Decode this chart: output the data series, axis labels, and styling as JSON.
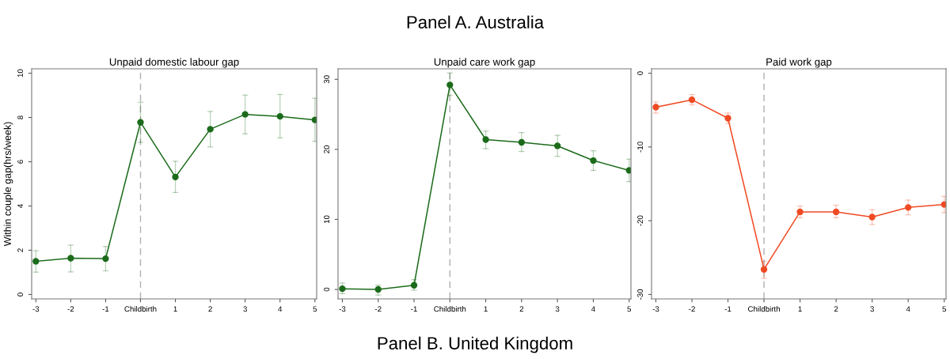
{
  "chart_data": [
    {
      "type": "line",
      "title": "Unpaid domestic labour gap",
      "ylabel": "Within couple gap(hrs/week)",
      "annotations": [
        "Panel A. Australia",
        "Panel B. United Kingdom"
      ],
      "categories": [
        "-3",
        "-2",
        "-1",
        "Childbirth",
        "1",
        "2",
        "3",
        "4",
        "5"
      ],
      "series": [
        {
          "color": "#1b6b1b",
          "values": [
            1.5,
            1.64,
            1.62,
            7.78,
            5.31,
            7.47,
            8.14,
            8.05,
            7.89
          ],
          "errors": [
            [
              1.01,
              1.98
            ],
            [
              1.02,
              2.23
            ],
            [
              1.07,
              2.17
            ],
            [
              6.88,
              8.69
            ],
            [
              4.61,
              6.02
            ],
            [
              6.67,
              8.27
            ],
            [
              7.26,
              9.01
            ],
            [
              7.08,
              9.04
            ],
            [
              6.92,
              8.87
            ]
          ]
        }
      ],
      "ylim": [
        -0.2,
        10.2
      ],
      "yticks": [
        0,
        2,
        4,
        6,
        8,
        10
      ],
      "marker": "circle",
      "line_style": "solid",
      "ref_lines": [
        {
          "axis": "x",
          "value": "Childbirth",
          "color": "#b0b0b0",
          "line_style": "dashed"
        }
      ]
    },
    {
      "type": "line",
      "title": "Unpaid care work gap",
      "categories": [
        "-3",
        "-2",
        "-1",
        "Childbirth",
        "1",
        "2",
        "3",
        "4",
        "5"
      ],
      "series": [
        {
          "color": "#1b6b1b",
          "values": [
            0.1,
            0,
            0.6,
            29.2,
            21.4,
            21,
            20.5,
            18.4,
            17
          ],
          "errors": [
            [
              -0.6,
              0.9
            ],
            [
              -0.8,
              0.6
            ],
            [
              -0.1,
              1.4
            ],
            [
              27.7,
              30.9
            ],
            [
              20.1,
              22.6
            ],
            [
              19.7,
              22.4
            ],
            [
              19,
              22
            ],
            [
              17,
              19.8
            ],
            [
              15.4,
              18.6
            ]
          ]
        }
      ],
      "ylim": [
        -1.35,
        31.5
      ],
      "yticks": [
        0,
        10,
        20,
        30
      ],
      "marker": "circle",
      "line_style": "solid",
      "ref_lines": [
        {
          "axis": "x",
          "value": "Childbirth",
          "color": "#b0b0b0",
          "line_style": "dashed"
        }
      ]
    },
    {
      "type": "line",
      "title": "Paid work gap",
      "categories": [
        "-3",
        "-2",
        "-1",
        "Childbirth",
        "1",
        "2",
        "3",
        "4",
        "5"
      ],
      "series": [
        {
          "color": "#f04a24",
          "values": [
            -4.6,
            -3.6,
            -6.1,
            -26.6,
            -18.8,
            -18.8,
            -19.5,
            -18.2,
            -17.8
          ],
          "errors": [
            [
              -5.4,
              -3.9
            ],
            [
              -4.3,
              -2.9
            ],
            [
              -6.8,
              -5.4
            ],
            [
              -27.8,
              -25.5
            ],
            [
              -19.6,
              -18
            ],
            [
              -19.6,
              -17.9
            ],
            [
              -20.5,
              -18.5
            ],
            [
              -19.2,
              -17.2
            ],
            [
              -18.9,
              -16.7
            ]
          ]
        }
      ],
      "ylim": [
        -30.6,
        0.6
      ],
      "yticks": [
        -30,
        -20,
        -10,
        0
      ],
      "marker": "circle",
      "line_style": "solid",
      "ref_lines": [
        {
          "axis": "x",
          "value": "Childbirth",
          "color": "#b0b0b0",
          "line_style": "dashed"
        }
      ]
    }
  ]
}
